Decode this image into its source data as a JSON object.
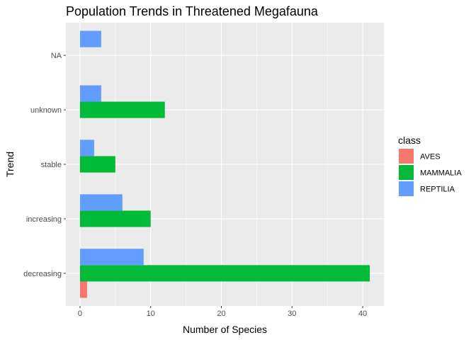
{
  "chart_data": {
    "type": "bar",
    "orientation": "horizontal",
    "title": "Population Trends in Threatened Megafauna",
    "xlabel": "Number of Species",
    "ylabel": "Trend",
    "categories": [
      "decreasing",
      "increasing",
      "stable",
      "unknown",
      "NA"
    ],
    "xlim": [
      -2,
      43
    ],
    "xticks": [
      0,
      10,
      20,
      30,
      40
    ],
    "grid": true,
    "legend": {
      "title": "class",
      "position": "right"
    },
    "series": [
      {
        "name": "AVES",
        "color": "#F8766D",
        "values": [
          1,
          null,
          null,
          null,
          null
        ]
      },
      {
        "name": "MAMMALIA",
        "color": "#00BA38",
        "values": [
          41,
          10,
          5,
          12,
          null
        ]
      },
      {
        "name": "REPTILIA",
        "color": "#619CFF",
        "values": [
          9,
          6,
          2,
          3,
          3
        ]
      }
    ]
  }
}
